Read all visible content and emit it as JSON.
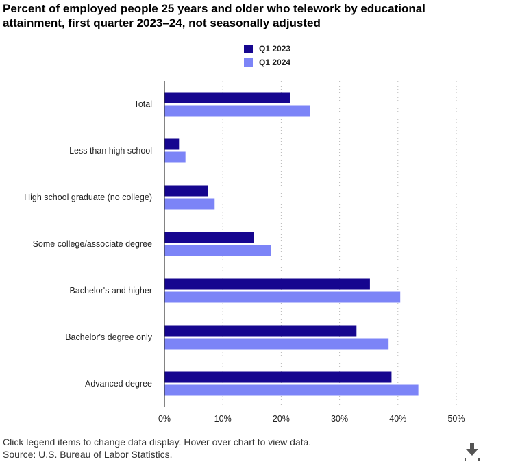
{
  "title": "Percent of employed people 25 years and older who telework by educational attainment, first quarter 2023–24, not seasonally adjusted",
  "footnotes": {
    "instructions": "Click legend items to change data display. Hover over chart to view data.",
    "source": "Source: U.S. Bureau of Labor Statistics."
  },
  "icons": {
    "download": "download-icon"
  },
  "chart_data": {
    "type": "bar",
    "orientation": "horizontal",
    "title": "Percent of employed people 25 years and older who telework by educational attainment, first quarter 2023–24, not seasonally adjusted",
    "xlabel": "",
    "ylabel": "",
    "categories": [
      "Total",
      "Less than high school",
      "High school graduate (no college)",
      "Some college/associate degree",
      "Bachelor's and higher",
      "Bachelor's degree only",
      "Advanced degree"
    ],
    "series": [
      {
        "name": "Q1 2023",
        "color": "#16068f",
        "values": [
          21.5,
          2.5,
          7.4,
          15.3,
          35.2,
          32.9,
          38.9
        ]
      },
      {
        "name": "Q1 2024",
        "color": "#7c84f7",
        "values": [
          25.0,
          3.6,
          8.6,
          18.3,
          40.4,
          38.4,
          43.5
        ]
      }
    ],
    "xlim": [
      0,
      50
    ],
    "xticks": [
      0,
      10,
      20,
      30,
      40,
      50
    ],
    "tick_format": "%",
    "grid": true,
    "legend": "top-center"
  }
}
